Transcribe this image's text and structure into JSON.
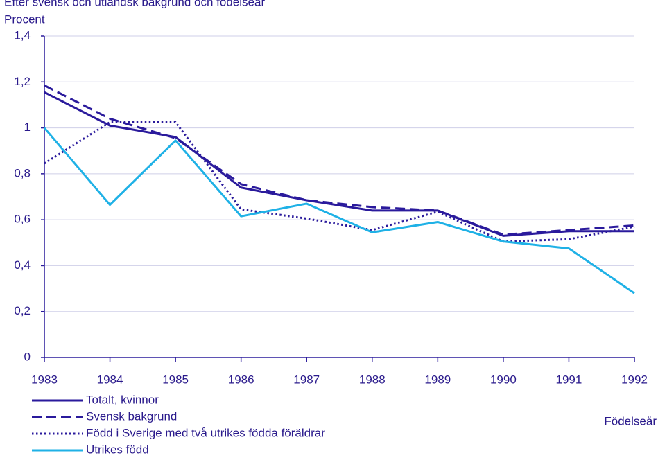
{
  "chart_data": {
    "type": "line",
    "subtitle": "Efter svensk och utländsk bakgrund och födelseår",
    "y_label": "Procent",
    "x_label": "Födelseår",
    "categories": [
      "1983",
      "1984",
      "1985",
      "1986",
      "1987",
      "1988",
      "1989",
      "1990",
      "1991",
      "1992"
    ],
    "series": [
      {
        "name": "Totalt, kvinnor",
        "color": "#2a1a9c",
        "style": "solid",
        "values": [
          1.155,
          1.01,
          0.96,
          0.74,
          0.685,
          0.64,
          0.64,
          0.53,
          0.55,
          0.55
        ]
      },
      {
        "name": "Svensk bakgrund",
        "color": "#2a1a9c",
        "style": "dashed",
        "values": [
          1.185,
          1.04,
          0.955,
          0.755,
          0.685,
          0.655,
          0.64,
          0.535,
          0.555,
          0.575
        ]
      },
      {
        "name": "Född i Sverige med två utrikes födda föräldrar",
        "color": "#2a1a9c",
        "style": "dotted",
        "values": [
          0.845,
          1.025,
          1.025,
          0.645,
          0.605,
          0.555,
          0.635,
          0.505,
          0.515,
          0.57
        ]
      },
      {
        "name": "Utrikes född",
        "color": "#1fb1e6",
        "style": "solid",
        "values": [
          1.0,
          0.665,
          0.945,
          0.615,
          0.67,
          0.545,
          0.59,
          0.505,
          0.475,
          0.28
        ]
      }
    ],
    "ylim": [
      0,
      1.4
    ],
    "yticks": [
      0,
      {
        "value": 0.2,
        "label": "0,2"
      },
      {
        "value": 0.4,
        "label": "0,4"
      },
      {
        "value": 0.6,
        "label": "0,6"
      },
      {
        "value": 0.8,
        "label": "0,8"
      },
      1,
      {
        "value": 1.2,
        "label": "1,2"
      },
      {
        "value": 1.4,
        "label": "1,4"
      }
    ],
    "grid": true,
    "legend": "bottom-left"
  }
}
